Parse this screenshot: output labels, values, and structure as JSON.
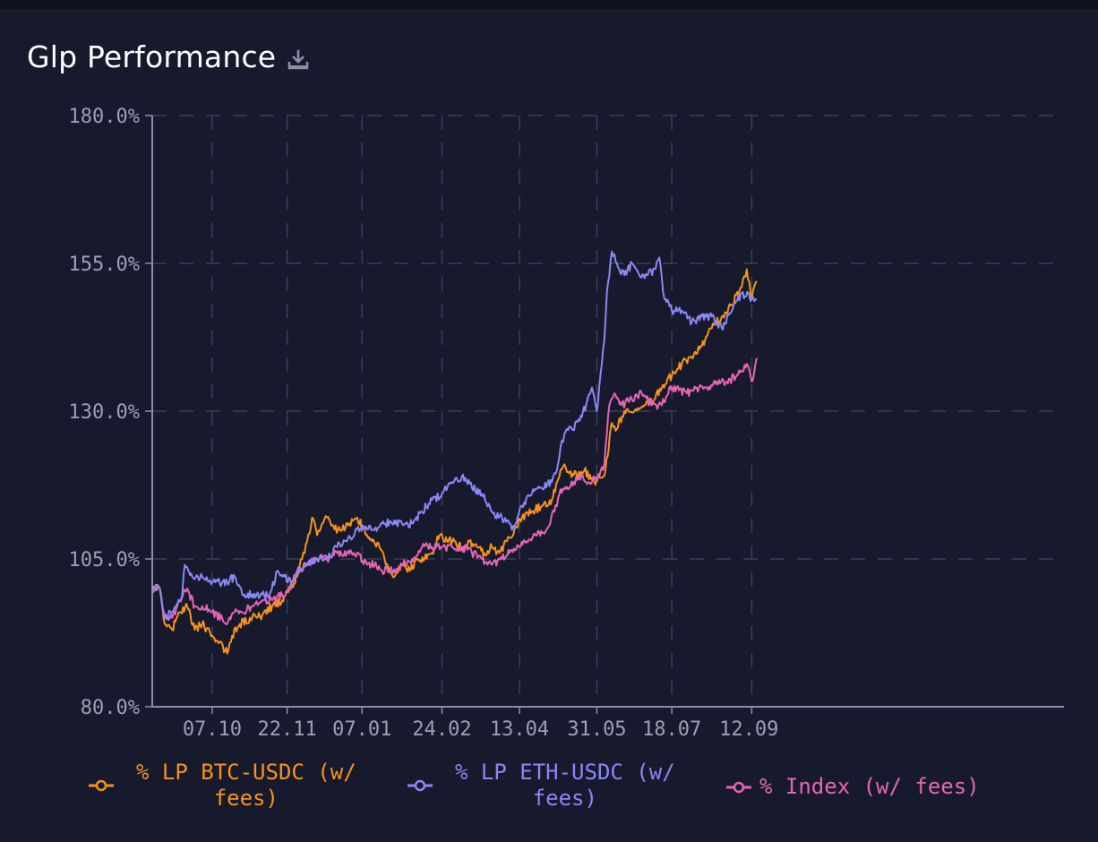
{
  "header": {
    "title": "Glp Performance",
    "download_icon": "download-icon"
  },
  "colors": {
    "background": "#161a2c",
    "btc": "#f7931a",
    "eth": "#8c87f5",
    "index": "#e565b5",
    "axis_text": "#9aa0b8",
    "grid": "#3a3f55"
  },
  "legend": {
    "btc_line1": "% LP BTC-USDC (w/",
    "btc_line2": "fees)",
    "eth_line1": "% LP ETH-USDC (w/",
    "eth_line2": "fees)",
    "index_label": "% Index (w/ fees)"
  },
  "chart_data": {
    "type": "line",
    "title": "Glp Performance",
    "xlabel": "",
    "ylabel": "",
    "ylim": [
      80,
      180
    ],
    "y_ticks": [
      "180.0%",
      "155.0%",
      "130.0%",
      "105.0%",
      "80.0%"
    ],
    "x_ticks": [
      "07.10",
      "22.11",
      "07.01",
      "24.02",
      "13.04",
      "31.05",
      "18.07",
      "12.09"
    ],
    "grid": true,
    "legend_position": "bottom",
    "x_domain": [
      0,
      365
    ],
    "x_tick_positions": [
      24,
      54,
      84,
      116,
      147,
      178,
      208,
      240
    ],
    "series": [
      {
        "name": "% LP BTC-USDC (w/ fees)",
        "color": "#f7931a",
        "points": [
          [
            0,
            100
          ],
          [
            3,
            100
          ],
          [
            5,
            94
          ],
          [
            8,
            93
          ],
          [
            11,
            96
          ],
          [
            14,
            97
          ],
          [
            17,
            93
          ],
          [
            20,
            94
          ],
          [
            24,
            92
          ],
          [
            27,
            91
          ],
          [
            30,
            89
          ],
          [
            32,
            92
          ],
          [
            35,
            94
          ],
          [
            40,
            95
          ],
          [
            44,
            95.5
          ],
          [
            48,
            97
          ],
          [
            52,
            98
          ],
          [
            55,
            100
          ],
          [
            58,
            102
          ],
          [
            60,
            105
          ],
          [
            62,
            108
          ],
          [
            64,
            112
          ],
          [
            66,
            109
          ],
          [
            68,
            111
          ],
          [
            70,
            112
          ],
          [
            73,
            110
          ],
          [
            76,
            110
          ],
          [
            79,
            111
          ],
          [
            82,
            112
          ],
          [
            85,
            110
          ],
          [
            88,
            108
          ],
          [
            91,
            107
          ],
          [
            93,
            105
          ],
          [
            95,
            103
          ],
          [
            97,
            102
          ],
          [
            100,
            104
          ],
          [
            103,
            103
          ],
          [
            106,
            105
          ],
          [
            109,
            105
          ],
          [
            112,
            106
          ],
          [
            115,
            109
          ],
          [
            118,
            108
          ],
          [
            121,
            108
          ],
          [
            124,
            107
          ],
          [
            127,
            108
          ],
          [
            130,
            107
          ],
          [
            133,
            106
          ],
          [
            136,
            107
          ],
          [
            139,
            106
          ],
          [
            142,
            108
          ],
          [
            145,
            110
          ],
          [
            148,
            112
          ],
          [
            152,
            113
          ],
          [
            156,
            114
          ],
          [
            160,
            115
          ],
          [
            163,
            119
          ],
          [
            165,
            121
          ],
          [
            167,
            119.5
          ],
          [
            170,
            119
          ],
          [
            173,
            120
          ],
          [
            177,
            118
          ],
          [
            181,
            119
          ],
          [
            184,
            128
          ],
          [
            186,
            127
          ],
          [
            189,
            130
          ],
          [
            193,
            130
          ],
          [
            197,
            131
          ],
          [
            201,
            132
          ],
          [
            204,
            134
          ],
          [
            208,
            136
          ],
          [
            212,
            138
          ],
          [
            216,
            139
          ],
          [
            220,
            141
          ],
          [
            224,
            144
          ],
          [
            228,
            146
          ],
          [
            232,
            148
          ],
          [
            236,
            151
          ],
          [
            238,
            154
          ],
          [
            240,
            149
          ],
          [
            242,
            152
          ]
        ]
      },
      {
        "name": "% LP ETH-USDC (w/ fees)",
        "color": "#8c87f5",
        "points": [
          [
            0,
            100
          ],
          [
            3,
            100
          ],
          [
            5,
            95
          ],
          [
            8,
            96
          ],
          [
            10,
            97
          ],
          [
            12,
            99
          ],
          [
            13,
            104
          ],
          [
            16,
            102
          ],
          [
            20,
            102
          ],
          [
            24,
            101
          ],
          [
            27,
            101
          ],
          [
            30,
            101
          ],
          [
            33,
            102
          ],
          [
            36,
            99
          ],
          [
            40,
            99
          ],
          [
            44,
            99
          ],
          [
            47,
            99
          ],
          [
            50,
            103
          ],
          [
            53,
            102
          ],
          [
            56,
            101
          ],
          [
            58,
            103
          ],
          [
            62,
            104
          ],
          [
            66,
            105
          ],
          [
            70,
            105
          ],
          [
            74,
            107
          ],
          [
            78,
            108
          ],
          [
            82,
            110
          ],
          [
            86,
            110
          ],
          [
            89,
            110
          ],
          [
            92,
            111
          ],
          [
            96,
            111
          ],
          [
            100,
            111
          ],
          [
            104,
            111
          ],
          [
            108,
            113
          ],
          [
            112,
            115
          ],
          [
            116,
            116
          ],
          [
            120,
            118
          ],
          [
            124,
            119
          ],
          [
            128,
            117
          ],
          [
            132,
            116
          ],
          [
            136,
            113
          ],
          [
            140,
            112
          ],
          [
            143,
            111
          ],
          [
            145,
            110
          ],
          [
            148,
            114
          ],
          [
            152,
            116
          ],
          [
            156,
            117
          ],
          [
            160,
            118
          ],
          [
            162,
            120
          ],
          [
            164,
            125
          ],
          [
            166,
            127
          ],
          [
            168,
            127
          ],
          [
            172,
            129
          ],
          [
            176,
            134
          ],
          [
            178,
            130
          ],
          [
            180,
            138
          ],
          [
            181,
            142
          ],
          [
            182,
            150
          ],
          [
            184,
            157
          ],
          [
            186,
            155
          ],
          [
            189,
            153
          ],
          [
            192,
            155
          ],
          [
            195,
            153
          ],
          [
            198,
            153
          ],
          [
            201,
            154
          ],
          [
            203,
            156
          ],
          [
            205,
            149
          ],
          [
            208,
            147
          ],
          [
            212,
            147
          ],
          [
            216,
            145
          ],
          [
            220,
            146
          ],
          [
            224,
            146
          ],
          [
            228,
            144
          ],
          [
            232,
            147
          ],
          [
            236,
            150
          ],
          [
            240,
            149
          ],
          [
            242,
            149
          ]
        ]
      },
      {
        "name": "% Index (w/ fees)",
        "color": "#e565b5",
        "points": [
          [
            0,
            100
          ],
          [
            3,
            100
          ],
          [
            5,
            95
          ],
          [
            8,
            95
          ],
          [
            11,
            98
          ],
          [
            14,
            100
          ],
          [
            17,
            97
          ],
          [
            20,
            97
          ],
          [
            24,
            96
          ],
          [
            28,
            95
          ],
          [
            30,
            94
          ],
          [
            33,
            96
          ],
          [
            36,
            96
          ],
          [
            40,
            97
          ],
          [
            44,
            98
          ],
          [
            48,
            98
          ],
          [
            52,
            99
          ],
          [
            55,
            100
          ],
          [
            58,
            103
          ],
          [
            62,
            104
          ],
          [
            66,
            105
          ],
          [
            70,
            105
          ],
          [
            74,
            106
          ],
          [
            78,
            106
          ],
          [
            82,
            106
          ],
          [
            86,
            104
          ],
          [
            89,
            104
          ],
          [
            92,
            103
          ],
          [
            96,
            103
          ],
          [
            100,
            104
          ],
          [
            104,
            105
          ],
          [
            108,
            107
          ],
          [
            112,
            107
          ],
          [
            116,
            107
          ],
          [
            120,
            107
          ],
          [
            124,
            107
          ],
          [
            128,
            106
          ],
          [
            132,
            105
          ],
          [
            136,
            104
          ],
          [
            140,
            105
          ],
          [
            143,
            106
          ],
          [
            147,
            107
          ],
          [
            150,
            108
          ],
          [
            154,
            109
          ],
          [
            158,
            110
          ],
          [
            161,
            113
          ],
          [
            163,
            116
          ],
          [
            167,
            117
          ],
          [
            171,
            119
          ],
          [
            175,
            118
          ],
          [
            179,
            119
          ],
          [
            181,
            121
          ],
          [
            183,
            131
          ],
          [
            185,
            133
          ],
          [
            188,
            131
          ],
          [
            192,
            132
          ],
          [
            196,
            133
          ],
          [
            200,
            131
          ],
          [
            204,
            131
          ],
          [
            207,
            134
          ],
          [
            210,
            134
          ],
          [
            214,
            133
          ],
          [
            218,
            134
          ],
          [
            222,
            134
          ],
          [
            226,
            135
          ],
          [
            230,
            135
          ],
          [
            234,
            136
          ],
          [
            238,
            138
          ],
          [
            240,
            135
          ],
          [
            242,
            139
          ]
        ]
      }
    ]
  }
}
